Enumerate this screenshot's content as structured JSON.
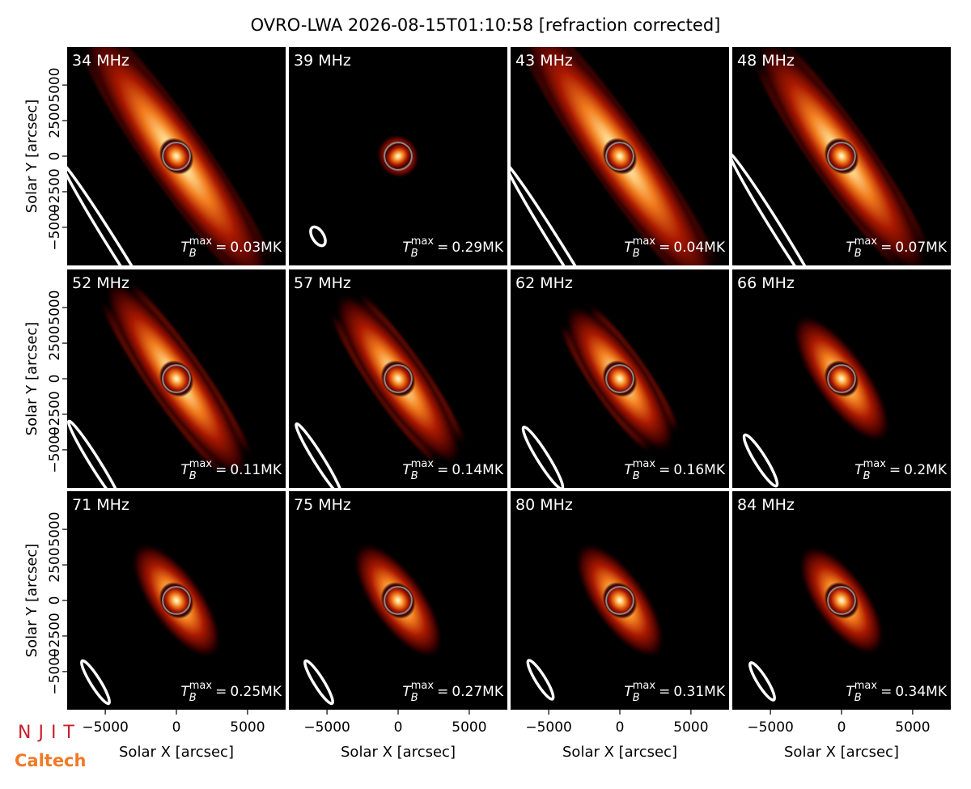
{
  "chart_data": {
    "type": "image-grid",
    "title": "OVRO-LWA 2026-08-15T01:10:58 [refraction corrected]",
    "xlabel": "Solar X [arcsec]",
    "ylabel": "Solar Y [arcsec]",
    "xlim": [
      -7680,
      7680
    ],
    "ylim": [
      -7680,
      7680
    ],
    "xticks": [
      {
        "value": -5000,
        "label": "−5000"
      },
      0,
      5000
    ],
    "yticks": [
      {
        "value": -5000,
        "label": "−5000"
      },
      {
        "value": -2500,
        "label": "−2500"
      },
      0,
      2500,
      5000
    ],
    "tb_symbol": "T",
    "tb_sub": "B",
    "tb_sup": "max",
    "tb_eq": "=",
    "panels": [
      {
        "freq": "34 MHz",
        "tb_max": "0.03MK"
      },
      {
        "freq": "39 MHz",
        "tb_max": "0.29MK"
      },
      {
        "freq": "43 MHz",
        "tb_max": "0.04MK"
      },
      {
        "freq": "48 MHz",
        "tb_max": "0.07MK"
      },
      {
        "freq": "52 MHz",
        "tb_max": "0.11MK"
      },
      {
        "freq": "57 MHz",
        "tb_max": "0.14MK"
      },
      {
        "freq": "62 MHz",
        "tb_max": "0.16MK"
      },
      {
        "freq": "66 MHz",
        "tb_max": "0.2MK"
      },
      {
        "freq": "71 MHz",
        "tb_max": "0.25MK"
      },
      {
        "freq": "75 MHz",
        "tb_max": "0.27MK"
      },
      {
        "freq": "80 MHz",
        "tb_max": "0.31MK"
      },
      {
        "freq": "84 MHz",
        "tb_max": "0.34MK"
      }
    ],
    "logos": [
      "NJIT",
      "Caltech"
    ]
  }
}
